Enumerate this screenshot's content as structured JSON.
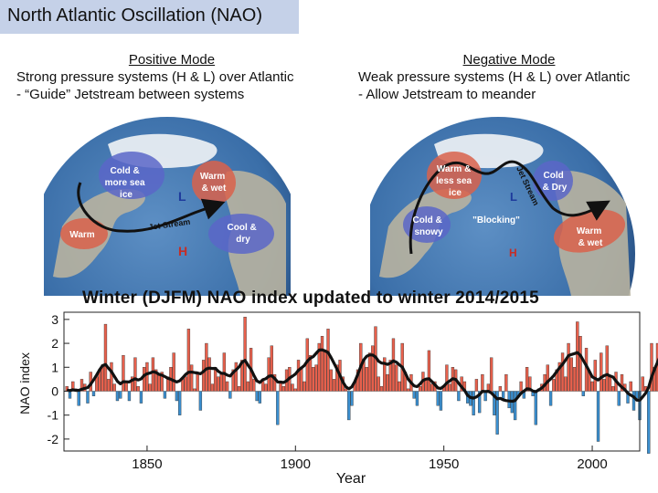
{
  "slide": {
    "title": "North Atlantic Oscillation (NAO)"
  },
  "positive": {
    "heading": "Positive Mode",
    "line1": "Strong pressure systems (H & L) over Atlantic",
    "line2": "- “Guide” Jetstream between systems",
    "labels": {
      "cold": [
        "Cold &",
        "more sea",
        "ice"
      ],
      "warm_wet": [
        "Warm",
        "& wet"
      ],
      "warm": "Warm",
      "cool_dry": [
        "Cool &",
        "dry"
      ],
      "jet": "Jet Stream",
      "low": "L",
      "high": "H"
    }
  },
  "negative": {
    "heading": "Negative Mode",
    "line1": "Weak pressure systems (H & L) over Atlantic",
    "line2": "- Allow Jetstream to meander",
    "labels": {
      "warm_less_ice": [
        "Warm &",
        "less sea",
        "ice"
      ],
      "cold_dry": [
        "Cold",
        "& Dry"
      ],
      "cold_snowy": [
        "Cold &",
        "snowy"
      ],
      "warm_wet": [
        "Warm",
        "& wet"
      ],
      "blocking": "\"Blocking\"",
      "jet": "Jet Stream",
      "low": "L",
      "high": "H"
    }
  },
  "colors": {
    "ocean": "#3a6ea8",
    "land": "#b8b3a0",
    "ice": "#e8edf2",
    "blue_blob": "#5a66c8",
    "red_blob": "#d9614b",
    "positive_bar": "#e8604c",
    "negative_bar": "#3a8fd0",
    "smooth_line": "#111111"
  },
  "chart_data": {
    "type": "bar",
    "title": "Winter (DJFM) NAO index updated to winter 2014/2015",
    "xlabel": "Year",
    "ylabel": "NAO index",
    "xlim": [
      1822,
      2016
    ],
    "ylim": [
      -2.5,
      3.3
    ],
    "xticks": [
      1850,
      1900,
      1950,
      2000
    ],
    "yticks": [
      -2,
      -1,
      0,
      1,
      2,
      3
    ],
    "grid": false,
    "series": [
      {
        "values": [
          0.2,
          -0.3,
          0.4,
          0.1,
          -0.6,
          0.5,
          0.3,
          -0.5,
          0.8,
          -0.2,
          0.6,
          0.9,
          1.1,
          2.8,
          0.5,
          1.2,
          0.3,
          -0.4,
          -0.3,
          1.5,
          0.4,
          -0.4,
          0.6,
          1.4,
          0.2,
          -0.5,
          1.0,
          1.2,
          0.3,
          1.4,
          0.9,
          0.7,
          0.8,
          -0.3,
          0.6,
          1.0,
          1.6,
          -0.4,
          -1.0,
          0.5,
          0.6,
          2.6,
          1.1,
          0.1,
          0.7,
          -0.8,
          1.3,
          2.0,
          1.4,
          0.3,
          1.0,
          0.6,
          0.7,
          1.6,
          0.4,
          -0.3,
          0.9,
          1.2,
          0.2,
          1.3,
          3.1,
          0.4,
          1.8,
          0.5,
          -0.4,
          -0.5,
          0.5,
          0.3,
          1.4,
          1.9,
          0.7,
          -1.4,
          0.4,
          0.2,
          0.9,
          1.0,
          0.3,
          0.1,
          1.3,
          1.0,
          0.4,
          2.2,
          1.5,
          1.0,
          1.1,
          2.0,
          2.3,
          1.7,
          2.6,
          0.9,
          0.5,
          1.1,
          1.3,
          0.6,
          0.1,
          -1.2,
          -0.6,
          0.4,
          0.9,
          2.0,
          1.3,
          1.0,
          1.6,
          1.9,
          2.7,
          0.6,
          0.2,
          1.4,
          0.7,
          1.3,
          2.2,
          1.1,
          0.4,
          2.0,
          0.8,
          0.1,
          0.7,
          -0.3,
          -0.6,
          0.2,
          0.8,
          0.5,
          1.7,
          0.3,
          0.4,
          -0.6,
          -0.8,
          0.2,
          1.1,
          0.3,
          1.0,
          0.9,
          -0.4,
          0.6,
          0.4,
          -0.5,
          -0.6,
          -1.0,
          0.5,
          -0.9,
          0.7,
          -0.4,
          0.3,
          1.4,
          -1.0,
          -1.8,
          0.2,
          -0.3,
          0.7,
          -0.7,
          -0.9,
          -1.2,
          -0.2,
          0.4,
          -0.3,
          1.0,
          0.6,
          -0.2,
          -1.4,
          0.1,
          0.3,
          0.7,
          1.1,
          -0.6,
          0.5,
          0.9,
          1.2,
          1.6,
          0.6,
          2.0,
          1.4,
          1.0,
          2.9,
          2.3,
          -0.2,
          1.8,
          0.8,
          0.4,
          1.3,
          -2.1,
          1.6,
          0.5,
          1.9,
          0.6,
          0.2,
          0.8,
          -0.6,
          0.7,
          0.3,
          -0.5,
          0.4,
          -0.8,
          -0.3,
          -1.2,
          0.6,
          0.2,
          -2.6,
          2.0,
          1.0,
          2.0,
          2.0
        ]
      }
    ]
  }
}
